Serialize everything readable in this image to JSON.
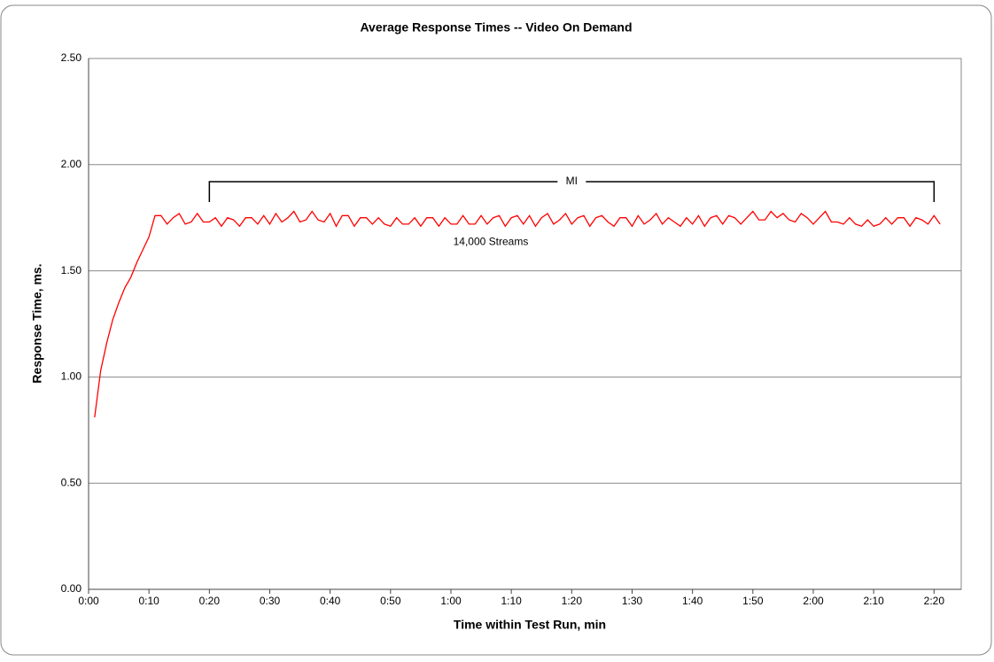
{
  "chart_data": {
    "type": "line",
    "title": "Average Response  Times -- Video On Demand",
    "xlabel": "Time within Test Run, min",
    "ylabel": "Response Time, ms.",
    "x": [
      1,
      2,
      3,
      4,
      5,
      6,
      7,
      8,
      9,
      10,
      11,
      12,
      13,
      14,
      15,
      16,
      17,
      18,
      19,
      20,
      21,
      22,
      23,
      24,
      25,
      26,
      27,
      28,
      29,
      30,
      31,
      32,
      33,
      34,
      35,
      36,
      37,
      38,
      39,
      40,
      41,
      42,
      43,
      44,
      45,
      46,
      47,
      48,
      49,
      50,
      51,
      52,
      53,
      54,
      55,
      56,
      57,
      58,
      59,
      60,
      61,
      62,
      63,
      64,
      65,
      66,
      67,
      68,
      69,
      70,
      71,
      72,
      73,
      74,
      75,
      76,
      77,
      78,
      79,
      80,
      81,
      82,
      83,
      84,
      85,
      86,
      87,
      88,
      89,
      90,
      91,
      92,
      93,
      94,
      95,
      96,
      97,
      98,
      99,
      100,
      101,
      102,
      103,
      104,
      105,
      106,
      107,
      108,
      109,
      110,
      111,
      112,
      113,
      114,
      115,
      116,
      117,
      118,
      119,
      120,
      121,
      122,
      123,
      124,
      125,
      126,
      127,
      128,
      129,
      130,
      131,
      132,
      133,
      134,
      135,
      136,
      137,
      138,
      139,
      140,
      141
    ],
    "series": [
      {
        "name": "14,000 Streams",
        "color": "#ff0000",
        "values": [
          0.81,
          1.03,
          1.16,
          1.27,
          1.35,
          1.42,
          1.47,
          1.54,
          1.6,
          1.66,
          1.76,
          1.76,
          1.72,
          1.75,
          1.77,
          1.72,
          1.73,
          1.77,
          1.73,
          1.73,
          1.75,
          1.71,
          1.75,
          1.74,
          1.71,
          1.75,
          1.75,
          1.72,
          1.76,
          1.72,
          1.77,
          1.73,
          1.75,
          1.78,
          1.73,
          1.74,
          1.78,
          1.74,
          1.73,
          1.77,
          1.71,
          1.76,
          1.76,
          1.71,
          1.75,
          1.75,
          1.72,
          1.75,
          1.72,
          1.71,
          1.75,
          1.72,
          1.72,
          1.75,
          1.71,
          1.75,
          1.75,
          1.71,
          1.75,
          1.72,
          1.72,
          1.76,
          1.72,
          1.72,
          1.76,
          1.72,
          1.75,
          1.76,
          1.71,
          1.75,
          1.76,
          1.72,
          1.76,
          1.71,
          1.75,
          1.77,
          1.72,
          1.74,
          1.77,
          1.72,
          1.75,
          1.76,
          1.71,
          1.75,
          1.76,
          1.73,
          1.71,
          1.75,
          1.75,
          1.71,
          1.76,
          1.72,
          1.74,
          1.77,
          1.72,
          1.75,
          1.73,
          1.71,
          1.75,
          1.72,
          1.76,
          1.71,
          1.75,
          1.76,
          1.72,
          1.76,
          1.75,
          1.72,
          1.75,
          1.78,
          1.74,
          1.74,
          1.78,
          1.75,
          1.77,
          1.74,
          1.73,
          1.77,
          1.75,
          1.72,
          1.75,
          1.78,
          1.73,
          1.73,
          1.72,
          1.75,
          1.72,
          1.71,
          1.74,
          1.71,
          1.72,
          1.75,
          1.72,
          1.75,
          1.75,
          1.71,
          1.75,
          1.74,
          1.72,
          1.76,
          1.72
        ]
      }
    ],
    "measurement_interval": {
      "label": "MI",
      "start": 20,
      "end": 140
    },
    "xlim": [
      0,
      144.5
    ],
    "xticks": [
      {
        "value": 0,
        "label": "0:00"
      },
      {
        "value": 10,
        "label": "0:10"
      },
      {
        "value": 20,
        "label": "0:20"
      },
      {
        "value": 30,
        "label": "0:30"
      },
      {
        "value": 40,
        "label": "0:40"
      },
      {
        "value": 50,
        "label": "0:50"
      },
      {
        "value": 60,
        "label": "1:00"
      },
      {
        "value": 70,
        "label": "1:10"
      },
      {
        "value": 80,
        "label": "1:20"
      },
      {
        "value": 90,
        "label": "1:30"
      },
      {
        "value": 100,
        "label": "1:40"
      },
      {
        "value": 110,
        "label": "1:50"
      },
      {
        "value": 120,
        "label": "2:00"
      },
      {
        "value": 130,
        "label": "2:10"
      },
      {
        "value": 140,
        "label": "2:20"
      }
    ],
    "ylim": [
      0,
      2.5
    ],
    "yticks": [
      {
        "value": 0,
        "label": "0.00"
      },
      {
        "value": 0.5,
        "label": "0.50"
      },
      {
        "value": 1,
        "label": "1.00"
      },
      {
        "value": 1.5,
        "label": "1.50"
      },
      {
        "value": 2,
        "label": "2.00"
      },
      {
        "value": 2.5,
        "label": "2.50"
      }
    ],
    "grid": true
  }
}
